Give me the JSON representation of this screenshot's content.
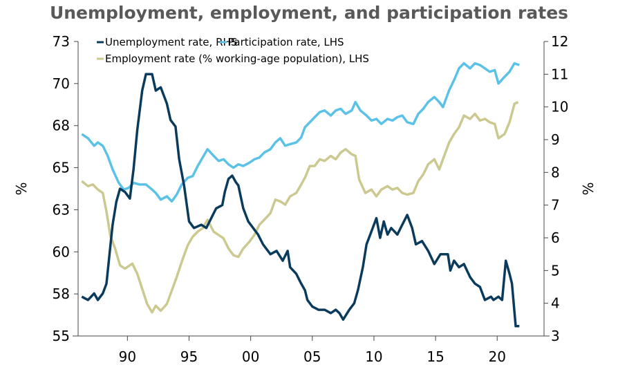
{
  "chart_data": {
    "type": "line",
    "title": "Unemployment, employment, and participation rates",
    "ylabel_left": "%",
    "ylabel_right": "%",
    "xlim": [
      1986,
      2023.8
    ],
    "ylim_left": [
      55,
      72.5
    ],
    "ylim_right": [
      3,
      12
    ],
    "x_ticks": [
      1990,
      1995,
      2000,
      2005,
      2010,
      2015,
      2020
    ],
    "x_tick_labels": [
      "90",
      "95",
      "00",
      "05",
      "10",
      "15",
      "20"
    ],
    "y_left_ticks": [
      55,
      57.5,
      60,
      62.5,
      65,
      67.5,
      70,
      72.5
    ],
    "y_left_tick_labels": [
      "55",
      "58",
      "60",
      "63",
      "65",
      "68",
      "70",
      "73"
    ],
    "y_right_ticks": [
      3,
      4,
      5,
      6,
      7,
      8,
      9,
      10,
      11,
      12
    ],
    "y_right_tick_labels": [
      "3",
      "4",
      "5",
      "6",
      "7",
      "8",
      "9",
      "10",
      "11",
      "12"
    ],
    "grid": false,
    "legend_placement": "top-left",
    "series": [
      {
        "name": "Unemployment rate, RHS",
        "axis": "right",
        "color": "#0b3b5c",
        "points": [
          [
            1986.3,
            4.2
          ],
          [
            1986.8,
            4.1
          ],
          [
            1987.3,
            4.3
          ],
          [
            1987.6,
            4.1
          ],
          [
            1988.0,
            4.3
          ],
          [
            1988.3,
            4.6
          ],
          [
            1988.6,
            5.7
          ],
          [
            1988.8,
            6.4
          ],
          [
            1989.1,
            7.1
          ],
          [
            1989.4,
            7.5
          ],
          [
            1989.8,
            7.4
          ],
          [
            1990.2,
            7.2
          ],
          [
            1990.5,
            8.1
          ],
          [
            1990.8,
            9.3
          ],
          [
            1991.2,
            10.5
          ],
          [
            1991.5,
            11.0
          ],
          [
            1992.0,
            11.0
          ],
          [
            1992.3,
            10.5
          ],
          [
            1992.7,
            10.6
          ],
          [
            1993.2,
            10.1
          ],
          [
            1993.5,
            9.6
          ],
          [
            1993.9,
            9.4
          ],
          [
            1994.2,
            8.4
          ],
          [
            1994.6,
            7.6
          ],
          [
            1995.0,
            6.5
          ],
          [
            1995.4,
            6.3
          ],
          [
            1996.0,
            6.4
          ],
          [
            1996.4,
            6.3
          ],
          [
            1996.8,
            6.6
          ],
          [
            1997.2,
            6.9
          ],
          [
            1997.7,
            7.0
          ],
          [
            1997.9,
            7.4
          ],
          [
            1998.2,
            7.8
          ],
          [
            1998.5,
            7.9
          ],
          [
            1998.8,
            7.7
          ],
          [
            1999.0,
            7.6
          ],
          [
            1999.4,
            6.9
          ],
          [
            1999.8,
            6.5
          ],
          [
            2000.2,
            6.3
          ],
          [
            2000.6,
            6.1
          ],
          [
            2001.0,
            5.8
          ],
          [
            2001.6,
            5.5
          ],
          [
            2002.1,
            5.6
          ],
          [
            2002.6,
            5.3
          ],
          [
            2003.0,
            5.6
          ],
          [
            2003.2,
            5.1
          ],
          [
            2003.7,
            4.9
          ],
          [
            2004.1,
            4.6
          ],
          [
            2004.4,
            4.4
          ],
          [
            2004.6,
            4.1
          ],
          [
            2005.0,
            3.9
          ],
          [
            2005.5,
            3.8
          ],
          [
            2006.0,
            3.8
          ],
          [
            2006.5,
            3.7
          ],
          [
            2006.9,
            3.8
          ],
          [
            2007.2,
            3.7
          ],
          [
            2007.5,
            3.5
          ],
          [
            2008.0,
            3.8
          ],
          [
            2008.4,
            4.0
          ],
          [
            2008.7,
            4.4
          ],
          [
            2009.1,
            5.1
          ],
          [
            2009.4,
            5.8
          ],
          [
            2009.8,
            6.2
          ],
          [
            2010.2,
            6.6
          ],
          [
            2010.5,
            6.0
          ],
          [
            2010.8,
            6.5
          ],
          [
            2011.1,
            6.1
          ],
          [
            2011.4,
            6.3
          ],
          [
            2011.9,
            6.1
          ],
          [
            2012.3,
            6.4
          ],
          [
            2012.7,
            6.7
          ],
          [
            2013.1,
            6.3
          ],
          [
            2013.4,
            5.8
          ],
          [
            2013.9,
            5.9
          ],
          [
            2014.4,
            5.6
          ],
          [
            2014.9,
            5.2
          ],
          [
            2015.4,
            5.5
          ],
          [
            2016.0,
            5.5
          ],
          [
            2016.2,
            5.0
          ],
          [
            2016.5,
            5.3
          ],
          [
            2016.9,
            5.1
          ],
          [
            2017.3,
            5.2
          ],
          [
            2017.8,
            4.8
          ],
          [
            2018.2,
            4.6
          ],
          [
            2018.6,
            4.5
          ],
          [
            2019.0,
            4.1
          ],
          [
            2019.5,
            4.2
          ],
          [
            2019.7,
            4.1
          ],
          [
            2020.1,
            4.2
          ],
          [
            2020.4,
            4.1
          ],
          [
            2020.7,
            5.3
          ],
          [
            2021.0,
            4.9
          ],
          [
            2021.2,
            4.6
          ],
          [
            2021.5,
            3.3
          ],
          [
            2021.8,
            3.3
          ]
        ]
      },
      {
        "name": "Participation rate, LHS",
        "axis": "left",
        "color": "#5bc2e7",
        "points": [
          [
            1986.3,
            67.0
          ],
          [
            1986.8,
            66.75
          ],
          [
            1987.3,
            66.3
          ],
          [
            1987.6,
            66.5
          ],
          [
            1988.0,
            66.3
          ],
          [
            1988.4,
            65.7
          ],
          [
            1988.8,
            64.9
          ],
          [
            1989.3,
            64.1
          ],
          [
            1989.7,
            63.7
          ],
          [
            1990.1,
            63.8
          ],
          [
            1990.5,
            64.1
          ],
          [
            1991.0,
            64.0
          ],
          [
            1991.5,
            64.0
          ],
          [
            1992.0,
            63.7
          ],
          [
            1992.3,
            63.5
          ],
          [
            1992.7,
            63.1
          ],
          [
            1993.2,
            63.3
          ],
          [
            1993.6,
            63.0
          ],
          [
            1994.0,
            63.4
          ],
          [
            1994.4,
            64.0
          ],
          [
            1994.9,
            64.4
          ],
          [
            1995.3,
            64.5
          ],
          [
            1995.7,
            65.1
          ],
          [
            1996.1,
            65.6
          ],
          [
            1996.5,
            66.1
          ],
          [
            1997.0,
            65.7
          ],
          [
            1997.4,
            65.4
          ],
          [
            1997.8,
            65.5
          ],
          [
            1998.2,
            65.2
          ],
          [
            1998.6,
            65.0
          ],
          [
            1999.0,
            65.2
          ],
          [
            1999.4,
            65.1
          ],
          [
            1999.9,
            65.3
          ],
          [
            2000.3,
            65.5
          ],
          [
            2000.7,
            65.6
          ],
          [
            2001.1,
            65.9
          ],
          [
            2001.6,
            66.1
          ],
          [
            2002.0,
            66.5
          ],
          [
            2002.4,
            66.75
          ],
          [
            2002.8,
            66.3
          ],
          [
            2003.2,
            66.4
          ],
          [
            2003.7,
            66.5
          ],
          [
            2004.1,
            66.8
          ],
          [
            2004.4,
            67.4
          ],
          [
            2004.8,
            67.7
          ],
          [
            2005.2,
            68.0
          ],
          [
            2005.6,
            68.3
          ],
          [
            2006.0,
            68.4
          ],
          [
            2006.5,
            68.1
          ],
          [
            2006.9,
            68.4
          ],
          [
            2007.3,
            68.5
          ],
          [
            2007.7,
            68.2
          ],
          [
            2008.2,
            68.4
          ],
          [
            2008.5,
            68.9
          ],
          [
            2008.9,
            68.4
          ],
          [
            2009.4,
            68.1
          ],
          [
            2009.8,
            67.8
          ],
          [
            2010.2,
            67.9
          ],
          [
            2010.6,
            67.6
          ],
          [
            2011.1,
            67.9
          ],
          [
            2011.5,
            67.8
          ],
          [
            2011.9,
            68.0
          ],
          [
            2012.3,
            68.1
          ],
          [
            2012.7,
            67.7
          ],
          [
            2013.2,
            67.6
          ],
          [
            2013.6,
            68.2
          ],
          [
            2014.0,
            68.5
          ],
          [
            2014.4,
            68.9
          ],
          [
            2014.9,
            69.2
          ],
          [
            2015.3,
            68.9
          ],
          [
            2015.6,
            68.6
          ],
          [
            2016.1,
            69.6
          ],
          [
            2016.5,
            70.2
          ],
          [
            2016.9,
            70.9
          ],
          [
            2017.3,
            71.2
          ],
          [
            2017.8,
            70.9
          ],
          [
            2018.2,
            71.2
          ],
          [
            2018.6,
            71.1
          ],
          [
            2019.0,
            70.9
          ],
          [
            2019.4,
            70.7
          ],
          [
            2019.8,
            70.8
          ],
          [
            2020.1,
            70.0
          ],
          [
            2020.6,
            70.4
          ],
          [
            2021.0,
            70.7
          ],
          [
            2021.4,
            71.2
          ],
          [
            2021.8,
            71.1
          ]
        ]
      },
      {
        "name": "Employment rate (% working-age population), LHS",
        "axis": "left",
        "color": "#cbc98f",
        "points": [
          [
            1986.3,
            64.2
          ],
          [
            1986.8,
            63.9
          ],
          [
            1987.2,
            64.0
          ],
          [
            1987.6,
            63.7
          ],
          [
            1988.0,
            63.5
          ],
          [
            1988.3,
            62.4
          ],
          [
            1988.6,
            61.0
          ],
          [
            1989.0,
            60.2
          ],
          [
            1989.4,
            59.2
          ],
          [
            1989.8,
            59.0
          ],
          [
            1990.4,
            59.3
          ],
          [
            1990.8,
            58.7
          ],
          [
            1991.2,
            57.8
          ],
          [
            1991.6,
            56.9
          ],
          [
            1992.0,
            56.4
          ],
          [
            1992.3,
            56.8
          ],
          [
            1992.7,
            56.5
          ],
          [
            1993.2,
            56.9
          ],
          [
            1993.6,
            57.7
          ],
          [
            1994.0,
            58.5
          ],
          [
            1994.4,
            59.4
          ],
          [
            1994.9,
            60.4
          ],
          [
            1995.3,
            60.9
          ],
          [
            1995.7,
            61.2
          ],
          [
            1996.1,
            61.4
          ],
          [
            1996.5,
            61.9
          ],
          [
            1997.0,
            61.2
          ],
          [
            1997.4,
            61.0
          ],
          [
            1997.8,
            60.8
          ],
          [
            1998.2,
            60.2
          ],
          [
            1998.6,
            59.8
          ],
          [
            1999.0,
            59.7
          ],
          [
            1999.4,
            60.2
          ],
          [
            1999.9,
            60.6
          ],
          [
            2000.3,
            61.0
          ],
          [
            2000.7,
            61.6
          ],
          [
            2001.1,
            61.9
          ],
          [
            2001.6,
            62.3
          ],
          [
            2002.0,
            63.1
          ],
          [
            2002.4,
            63.0
          ],
          [
            2002.8,
            62.8
          ],
          [
            2003.2,
            63.3
          ],
          [
            2003.7,
            63.5
          ],
          [
            2004.1,
            64.0
          ],
          [
            2004.4,
            64.4
          ],
          [
            2004.8,
            65.1
          ],
          [
            2005.2,
            65.1
          ],
          [
            2005.6,
            65.5
          ],
          [
            2006.0,
            65.4
          ],
          [
            2006.5,
            65.7
          ],
          [
            2006.9,
            65.5
          ],
          [
            2007.3,
            65.9
          ],
          [
            2007.7,
            66.1
          ],
          [
            2008.2,
            65.8
          ],
          [
            2008.5,
            65.7
          ],
          [
            2008.8,
            64.3
          ],
          [
            2009.3,
            63.5
          ],
          [
            2009.8,
            63.7
          ],
          [
            2010.2,
            63.3
          ],
          [
            2010.6,
            63.7
          ],
          [
            2011.1,
            63.9
          ],
          [
            2011.5,
            63.7
          ],
          [
            2011.9,
            63.8
          ],
          [
            2012.3,
            63.5
          ],
          [
            2012.7,
            63.4
          ],
          [
            2013.2,
            63.5
          ],
          [
            2013.6,
            64.2
          ],
          [
            2014.0,
            64.6
          ],
          [
            2014.4,
            65.2
          ],
          [
            2014.9,
            65.5
          ],
          [
            2015.3,
            64.9
          ],
          [
            2015.6,
            65.5
          ],
          [
            2016.1,
            66.5
          ],
          [
            2016.5,
            67.0
          ],
          [
            2016.9,
            67.4
          ],
          [
            2017.3,
            68.1
          ],
          [
            2017.8,
            67.9
          ],
          [
            2018.2,
            68.2
          ],
          [
            2018.6,
            67.8
          ],
          [
            2019.0,
            67.9
          ],
          [
            2019.4,
            67.7
          ],
          [
            2019.8,
            67.6
          ],
          [
            2020.1,
            66.75
          ],
          [
            2020.6,
            67.0
          ],
          [
            2021.0,
            67.7
          ],
          [
            2021.4,
            68.8
          ],
          [
            2021.7,
            68.9
          ]
        ]
      }
    ]
  }
}
